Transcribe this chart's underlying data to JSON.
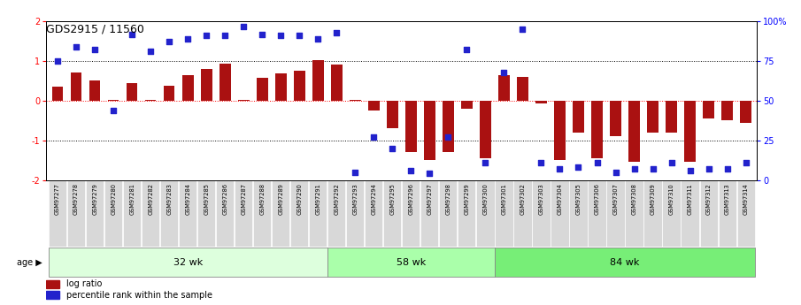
{
  "title": "GDS2915 / 11560",
  "samples": [
    "GSM97277",
    "GSM97278",
    "GSM97279",
    "GSM97280",
    "GSM97281",
    "GSM97282",
    "GSM97283",
    "GSM97284",
    "GSM97285",
    "GSM97286",
    "GSM97287",
    "GSM97288",
    "GSM97289",
    "GSM97290",
    "GSM97291",
    "GSM97292",
    "GSM97293",
    "GSM97294",
    "GSM97295",
    "GSM97296",
    "GSM97297",
    "GSM97298",
    "GSM97299",
    "GSM97300",
    "GSM97301",
    "GSM97302",
    "GSM97303",
    "GSM97304",
    "GSM97305",
    "GSM97306",
    "GSM97307",
    "GSM97308",
    "GSM97309",
    "GSM97310",
    "GSM97311",
    "GSM97312",
    "GSM97313",
    "GSM97314"
  ],
  "log_ratio": [
    0.35,
    0.72,
    0.5,
    0.02,
    0.45,
    0.02,
    0.38,
    0.65,
    0.8,
    0.93,
    0.02,
    0.57,
    0.68,
    0.75,
    1.03,
    0.92,
    0.02,
    -0.25,
    -0.7,
    -1.3,
    -1.5,
    -1.3,
    -0.2,
    -1.45,
    0.65,
    0.6,
    -0.07,
    -1.5,
    -0.8,
    -1.45,
    -0.9,
    -1.55,
    -0.8,
    -0.8,
    -1.55,
    -0.45,
    -0.5,
    -0.55
  ],
  "percentile_pct": [
    75,
    84,
    82,
    44,
    92,
    81,
    87,
    89,
    91,
    91,
    97,
    92,
    91,
    91,
    89,
    93,
    5,
    27,
    20,
    6,
    4,
    27,
    82,
    11,
    68,
    95,
    11,
    7,
    8,
    11,
    5,
    7,
    7,
    11,
    6,
    7,
    7,
    11
  ],
  "group_boundaries": [
    0,
    15,
    24,
    38
  ],
  "group_labels": [
    "32 wk",
    "58 wk",
    "84 wk"
  ],
  "group_colors": [
    "#ddffdd",
    "#aaffaa",
    "#77ee77"
  ],
  "bar_color": "#aa1111",
  "dot_color": "#2222cc",
  "bg_color": "#ffffff",
  "tick_bg": "#dddddd",
  "ylim_left": [
    -2.0,
    2.0
  ],
  "plot_yticks": [
    -2,
    -1,
    0,
    1,
    2
  ],
  "plot_ytick_labels": [
    "-2",
    "-1",
    "0",
    "1",
    "2"
  ],
  "right_yticks": [
    0,
    25,
    50,
    75,
    100
  ],
  "right_ytick_labels": [
    "0",
    "25",
    "50",
    "75",
    "100%"
  ]
}
